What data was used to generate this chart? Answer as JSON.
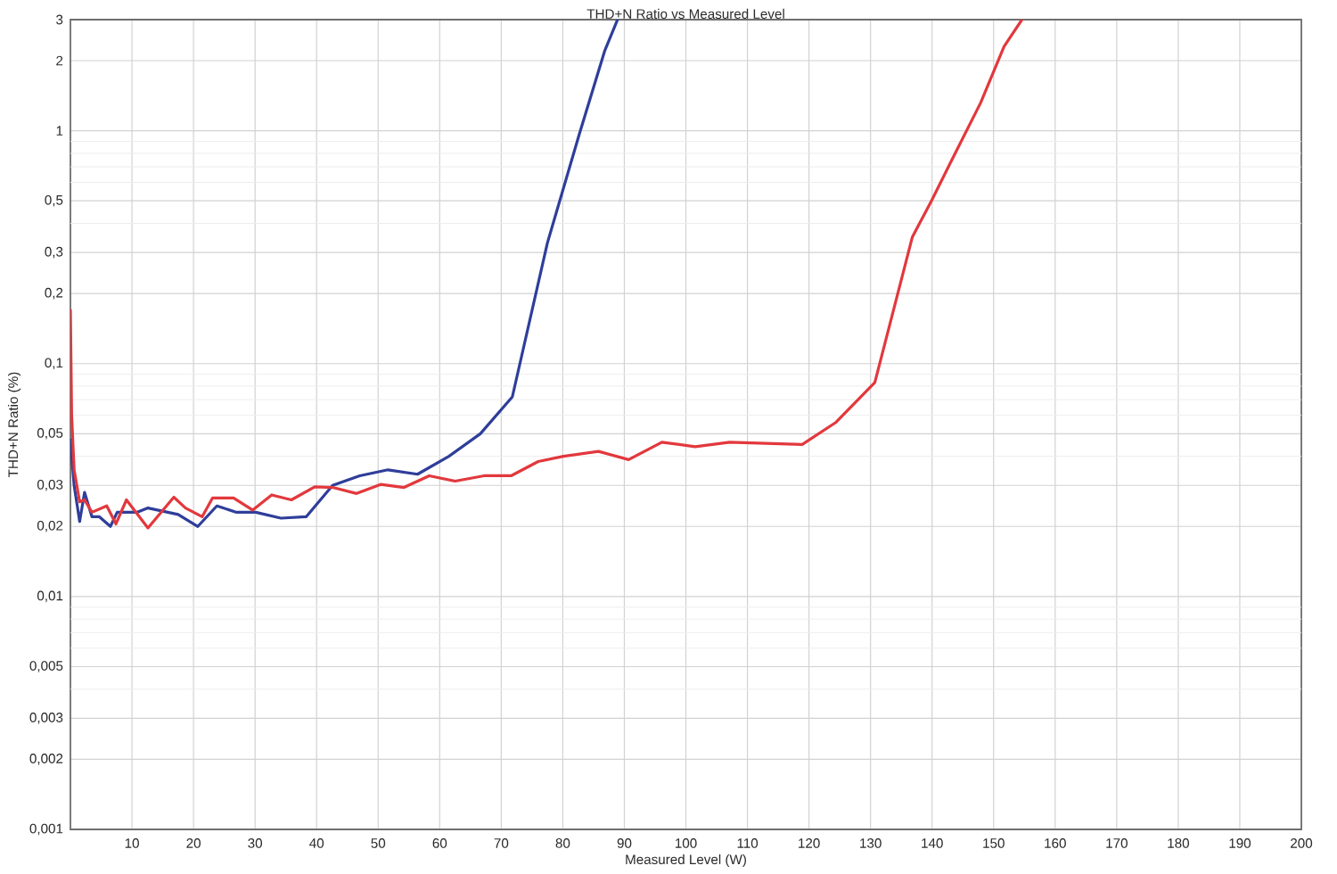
{
  "chart_data": {
    "type": "line",
    "title": "THD+N Ratio vs Measured Level",
    "xlabel": "Measured Level (W)",
    "ylabel": "THD+N Ratio (%)",
    "log": "y",
    "xlim": [
      0,
      200
    ],
    "xticks": [
      10,
      20,
      30,
      40,
      50,
      60,
      70,
      80,
      90,
      100,
      110,
      120,
      130,
      140,
      150,
      160,
      170,
      180,
      190,
      200
    ],
    "ylim": [
      0.001,
      3
    ],
    "yticks": [
      {
        "value": 0.001,
        "label": "0,001"
      },
      {
        "value": 0.002,
        "label": "0,002"
      },
      {
        "value": 0.003,
        "label": "0,003"
      },
      {
        "value": 0.004,
        "label": null
      },
      {
        "value": 0.005,
        "label": "0,005"
      },
      {
        "value": 0.006,
        "label": null
      },
      {
        "value": 0.007,
        "label": null
      },
      {
        "value": 0.008,
        "label": null
      },
      {
        "value": 0.009,
        "label": null
      },
      {
        "value": 0.01,
        "label": "0,01"
      },
      {
        "value": 0.02,
        "label": "0,02"
      },
      {
        "value": 0.03,
        "label": "0,03"
      },
      {
        "value": 0.04,
        "label": null
      },
      {
        "value": 0.05,
        "label": "0,05"
      },
      {
        "value": 0.06,
        "label": null
      },
      {
        "value": 0.07,
        "label": null
      },
      {
        "value": 0.08,
        "label": null
      },
      {
        "value": 0.09,
        "label": null
      },
      {
        "value": 0.1,
        "label": "0,1"
      },
      {
        "value": 0.2,
        "label": "0,2"
      },
      {
        "value": 0.3,
        "label": "0,3"
      },
      {
        "value": 0.4,
        "label": null
      },
      {
        "value": 0.5,
        "label": "0,5"
      },
      {
        "value": 0.6,
        "label": null
      },
      {
        "value": 0.7,
        "label": null
      },
      {
        "value": 0.8,
        "label": null
      },
      {
        "value": 0.9,
        "label": null
      },
      1,
      2,
      3
    ],
    "grid": true,
    "marker": "none",
    "line_style": "solid",
    "series": [
      {
        "color": "#2f3e9a",
        "x": [
          0,
          0.6,
          1.5,
          2.3,
          3.5,
          4.7,
          6.5,
          7.6,
          10.8,
          12.6,
          17.5,
          20.7,
          23.8,
          27.0,
          30.1,
          34.2,
          38.3,
          42.6,
          47.0,
          51.6,
          56.4,
          61.5,
          66.6,
          71.8,
          77.5,
          82.7,
          86.8,
          88.9
        ],
        "values": [
          0.047,
          0.03,
          0.021,
          0.028,
          0.022,
          0.022,
          0.02,
          0.023,
          0.023,
          0.024,
          0.0225,
          0.02,
          0.0245,
          0.023,
          0.023,
          0.0217,
          0.022,
          0.03,
          0.033,
          0.035,
          0.0335,
          0.04,
          0.05,
          0.072,
          0.33,
          0.97,
          2.2,
          3
        ]
      },
      {
        "color": "#e2383d",
        "x": [
          0,
          0.2,
          0.6,
          1.5,
          2.3,
          3.5,
          5.9,
          7.4,
          9.1,
          12.6,
          16.8,
          18.7,
          21.4,
          23.1,
          26.5,
          29.6,
          32.7,
          35.9,
          39.7,
          42.6,
          46.5,
          50.4,
          54.2,
          58.3,
          62.5,
          67.2,
          71.6,
          76.0,
          80.1,
          85.8,
          90.7,
          96.1,
          101.5,
          107.1,
          118.9,
          124.4,
          130.7,
          136.8,
          139.9,
          143.0,
          147.9,
          151.7,
          154.6
        ],
        "values": [
          0.17,
          0.06,
          0.035,
          0.0255,
          0.026,
          0.023,
          0.0245,
          0.0205,
          0.026,
          0.0197,
          0.0267,
          0.024,
          0.022,
          0.0265,
          0.0265,
          0.0235,
          0.0273,
          0.026,
          0.0296,
          0.0294,
          0.0277,
          0.0303,
          0.0294,
          0.033,
          0.0313,
          0.033,
          0.033,
          0.038,
          0.04,
          0.042,
          0.0387,
          0.046,
          0.044,
          0.046,
          0.045,
          0.056,
          0.083,
          0.35,
          0.5,
          0.73,
          1.32,
          2.3,
          3
        ]
      }
    ]
  }
}
